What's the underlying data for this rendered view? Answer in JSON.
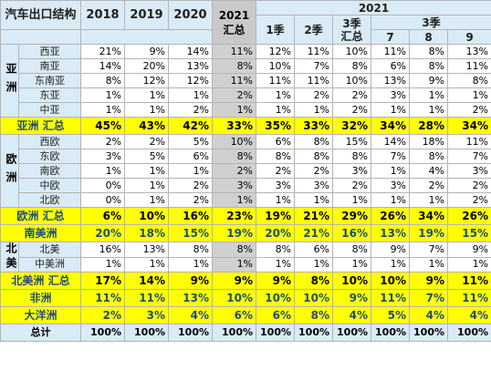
{
  "header": {
    "title": "汽车出口结构",
    "years": [
      "2018",
      "2019",
      "2020"
    ],
    "summary_2021": [
      "2021",
      "汇总"
    ],
    "group_2021": "2021",
    "q1": "1季",
    "q2": "2季",
    "q3": [
      "3季",
      "汇总"
    ],
    "q3_group": "3季",
    "months": [
      "7",
      "8",
      "9"
    ]
  },
  "regions": {
    "asia": "亚洲",
    "europe": "欧洲",
    "namerica": "北美"
  },
  "rows": {
    "xiya": {
      "label": "西亚",
      "v": [
        "21%",
        "9%",
        "14%",
        "11%",
        "12%",
        "11%",
        "10%",
        "11%",
        "8%",
        "13%"
      ]
    },
    "nanya": {
      "label": "南亚",
      "v": [
        "14%",
        "20%",
        "13%",
        "8%",
        "10%",
        "7%",
        "8%",
        "6%",
        "8%",
        "11%"
      ]
    },
    "dongnanya": {
      "label": "东南亚",
      "v": [
        "8%",
        "12%",
        "12%",
        "11%",
        "11%",
        "11%",
        "10%",
        "13%",
        "9%",
        "8%"
      ]
    },
    "dongya": {
      "label": "东亚",
      "v": [
        "1%",
        "1%",
        "1%",
        "2%",
        "1%",
        "2%",
        "2%",
        "3%",
        "1%",
        "1%"
      ]
    },
    "zhongya": {
      "label": "中亚",
      "v": [
        "1%",
        "1%",
        "2%",
        "1%",
        "1%",
        "1%",
        "2%",
        "1%",
        "1%",
        "2%"
      ]
    },
    "asia_total": {
      "label": "亚洲 汇总",
      "v": [
        "45%",
        "43%",
        "42%",
        "33%",
        "35%",
        "33%",
        "32%",
        "34%",
        "28%",
        "34%"
      ]
    },
    "xiou": {
      "label": "西欧",
      "v": [
        "2%",
        "2%",
        "5%",
        "10%",
        "6%",
        "8%",
        "15%",
        "14%",
        "18%",
        "11%"
      ]
    },
    "dongou": {
      "label": "东欧",
      "v": [
        "3%",
        "5%",
        "6%",
        "8%",
        "8%",
        "8%",
        "8%",
        "7%",
        "8%",
        "7%"
      ]
    },
    "nanou": {
      "label": "南欧",
      "v": [
        "1%",
        "1%",
        "1%",
        "2%",
        "2%",
        "2%",
        "3%",
        "1%",
        "4%",
        "3%"
      ]
    },
    "zhongou": {
      "label": "中欧",
      "v": [
        "0%",
        "1%",
        "2%",
        "3%",
        "3%",
        "3%",
        "2%",
        "3%",
        "2%",
        "2%"
      ]
    },
    "beiou": {
      "label": "北欧",
      "v": [
        "0%",
        "1%",
        "2%",
        "1%",
        "1%",
        "1%",
        "1%",
        "1%",
        "1%",
        "2%"
      ]
    },
    "europe_total": {
      "label": "欧洲 汇总",
      "v": [
        "6%",
        "10%",
        "16%",
        "23%",
        "19%",
        "21%",
        "29%",
        "26%",
        "34%",
        "26%"
      ]
    },
    "nanmeizhou": {
      "label": "南美洲",
      "v": [
        "20%",
        "18%",
        "15%",
        "19%",
        "20%",
        "21%",
        "16%",
        "13%",
        "19%",
        "15%"
      ]
    },
    "beimei": {
      "label": "北美",
      "v": [
        "16%",
        "13%",
        "8%",
        "8%",
        "8%",
        "6%",
        "8%",
        "9%",
        "7%",
        "9%"
      ]
    },
    "zhongmeizhou": {
      "label": "中美洲",
      "v": [
        "1%",
        "1%",
        "1%",
        "1%",
        "1%",
        "1%",
        "1%",
        "1%",
        "1%",
        "1%"
      ]
    },
    "na_total": {
      "label": "北美洲 汇总",
      "v": [
        "17%",
        "14%",
        "9%",
        "9%",
        "9%",
        "8%",
        "10%",
        "10%",
        "9%",
        "11%"
      ]
    },
    "feizhou": {
      "label": "非洲",
      "v": [
        "11%",
        "11%",
        "13%",
        "10%",
        "10%",
        "10%",
        "9%",
        "11%",
        "7%",
        "11%"
      ]
    },
    "dayangzhou": {
      "label": "大洋洲",
      "v": [
        "2%",
        "3%",
        "4%",
        "6%",
        "6%",
        "8%",
        "4%",
        "5%",
        "4%",
        "4%"
      ]
    },
    "zongji": {
      "label": "总计",
      "v": [
        "100%",
        "100%",
        "100%",
        "100%",
        "100%",
        "100%",
        "100%",
        "100%",
        "100%",
        "100%"
      ]
    }
  }
}
